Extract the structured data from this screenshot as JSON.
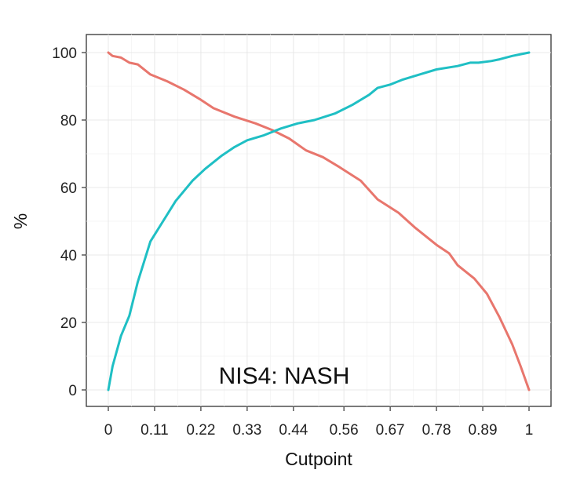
{
  "chart_data": {
    "type": "line",
    "title": "",
    "xlabel": "Cutpoint",
    "ylabel": "%",
    "xlim": [
      0,
      1
    ],
    "ylim": [
      0,
      100
    ],
    "x_ticks": [
      0,
      0.11,
      0.22,
      0.33,
      0.44,
      0.56,
      0.67,
      0.78,
      0.89,
      1
    ],
    "x_tick_labels": [
      "0",
      "0.11",
      "0.22",
      "0.33",
      "0.44",
      "0.56",
      "0.67",
      "0.78",
      "0.89",
      "1"
    ],
    "y_ticks": [
      0,
      20,
      40,
      60,
      80,
      100
    ],
    "y_tick_labels": [
      "0",
      "20",
      "40",
      "60",
      "80",
      "100"
    ],
    "grid": true,
    "legend": "none",
    "annotation": "NIS4: NASH",
    "series": [
      {
        "color": "#e8766d",
        "x": [
          0,
          0.01,
          0.03,
          0.05,
          0.07,
          0.1,
          0.14,
          0.18,
          0.22,
          0.25,
          0.3,
          0.35,
          0.39,
          0.43,
          0.47,
          0.51,
          0.55,
          0.6,
          0.64,
          0.69,
          0.73,
          0.78,
          0.81,
          0.83,
          0.87,
          0.9,
          0.93,
          0.96,
          0.98,
          1
        ],
        "y": [
          100,
          99,
          98.5,
          97,
          96.5,
          93.5,
          91.5,
          89,
          86,
          83.5,
          81,
          79,
          77,
          74.5,
          71,
          69,
          66,
          62,
          56.5,
          52.5,
          48,
          43,
          40.5,
          37,
          33,
          28.5,
          21.5,
          13.5,
          7,
          0
        ]
      },
      {
        "color": "#1fbfc4",
        "x": [
          0,
          0.01,
          0.03,
          0.05,
          0.07,
          0.1,
          0.13,
          0.16,
          0.2,
          0.23,
          0.27,
          0.3,
          0.33,
          0.37,
          0.41,
          0.45,
          0.49,
          0.54,
          0.58,
          0.62,
          0.64,
          0.67,
          0.7,
          0.74,
          0.78,
          0.83,
          0.86,
          0.88,
          0.91,
          0.93,
          0.96,
          0.98,
          1
        ],
        "y": [
          0,
          7,
          16,
          22,
          32,
          44,
          50,
          56,
          62,
          65.5,
          69.5,
          72,
          74,
          75.5,
          77.5,
          79,
          80,
          82,
          84.5,
          87.5,
          89.5,
          90.5,
          92,
          93.5,
          95,
          96,
          97,
          97,
          97.5,
          98,
          99,
          99.5,
          100
        ]
      }
    ]
  }
}
